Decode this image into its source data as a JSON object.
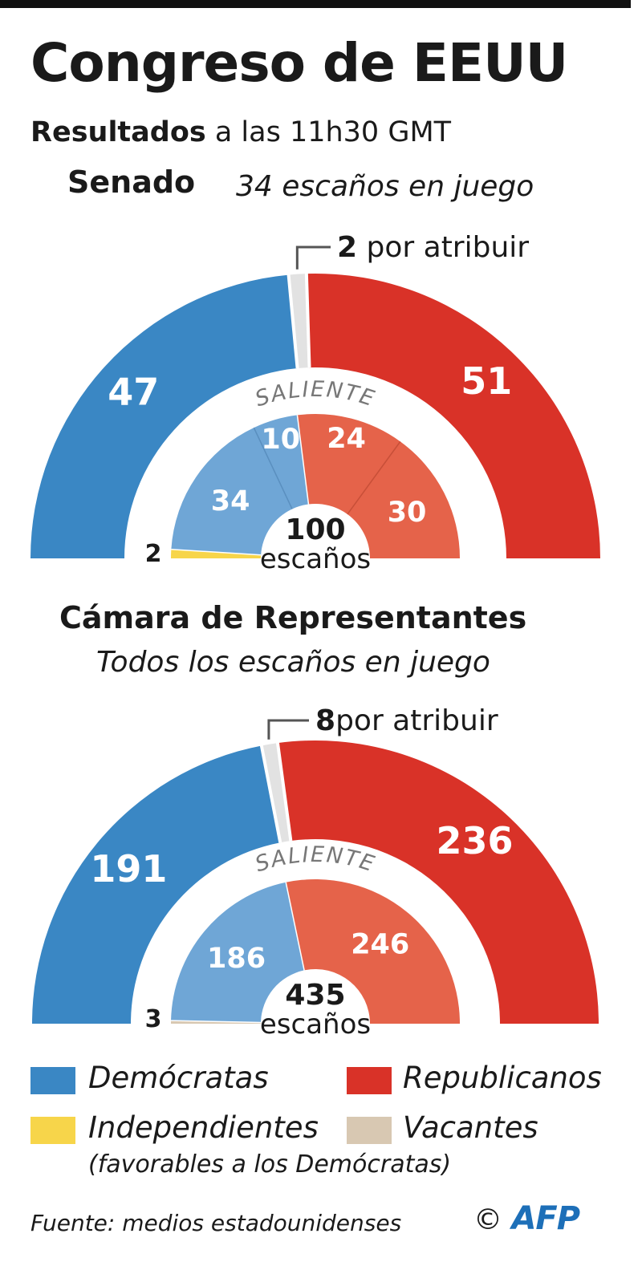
{
  "header": {
    "title": "Congreso de EEUU",
    "subtitle_bold": "Resultados",
    "subtitle_rest": " a las 11h30 GMT"
  },
  "colors": {
    "democrats": "#3a87c4",
    "republicans": "#d93228",
    "dem_outgoing": "#6fa6d6",
    "rep_outgoing": "#e5634a",
    "independents": "#f7d54a",
    "vacancies": "#d8c8b2",
    "unassigned": "#e2e2e2"
  },
  "chart_data": [
    {
      "type": "semicircle",
      "title": "Senado",
      "subtitle": "34 escaños en juego",
      "total": 100,
      "center_number": "100",
      "center_unit": "escaños",
      "inner_label": "SALIENTE",
      "results": [
        {
          "label": "Demócratas",
          "value": 47
        },
        {
          "label": "Por atribuir",
          "value": 2
        },
        {
          "label": "Republicanos",
          "value": 51
        }
      ],
      "unassigned_note_value": "2",
      "unassigned_note_text": " por atribuir",
      "outgoing": [
        {
          "label": "Independientes",
          "value": 2
        },
        {
          "label": "Demócratas (no en juego)",
          "value": 34
        },
        {
          "label": "Demócratas (en juego)",
          "value": 10
        },
        {
          "label": "Republicanos (en juego)",
          "value": 24
        },
        {
          "label": "Republicanos (no en juego)",
          "value": 30
        }
      ]
    },
    {
      "type": "semicircle",
      "title": "Cámara de Representantes",
      "subtitle": "Todos los escaños en juego",
      "total": 435,
      "center_number": "435",
      "center_unit": "escaños",
      "inner_label": "SALIENTE",
      "results": [
        {
          "label": "Demócratas",
          "value": 191
        },
        {
          "label": "Por atribuir",
          "value": 8
        },
        {
          "label": "Republicanos",
          "value": 236
        }
      ],
      "unassigned_note_value": "8",
      "unassigned_note_text": "por atribuir",
      "outgoing": [
        {
          "label": "Vacantes",
          "value": 3
        },
        {
          "label": "Demócratas",
          "value": 186
        },
        {
          "label": "Republicanos",
          "value": 246
        }
      ]
    }
  ],
  "legend": {
    "democrats": "Demócratas",
    "republicans": "Republicanos",
    "independents": "Independientes",
    "independents_note": "(favorables a los Demócratas)",
    "vacancies": "Vacantes"
  },
  "footer": {
    "source": "Fuente: medios estadounidenses",
    "copyright": "©",
    "logo": "AFP"
  }
}
